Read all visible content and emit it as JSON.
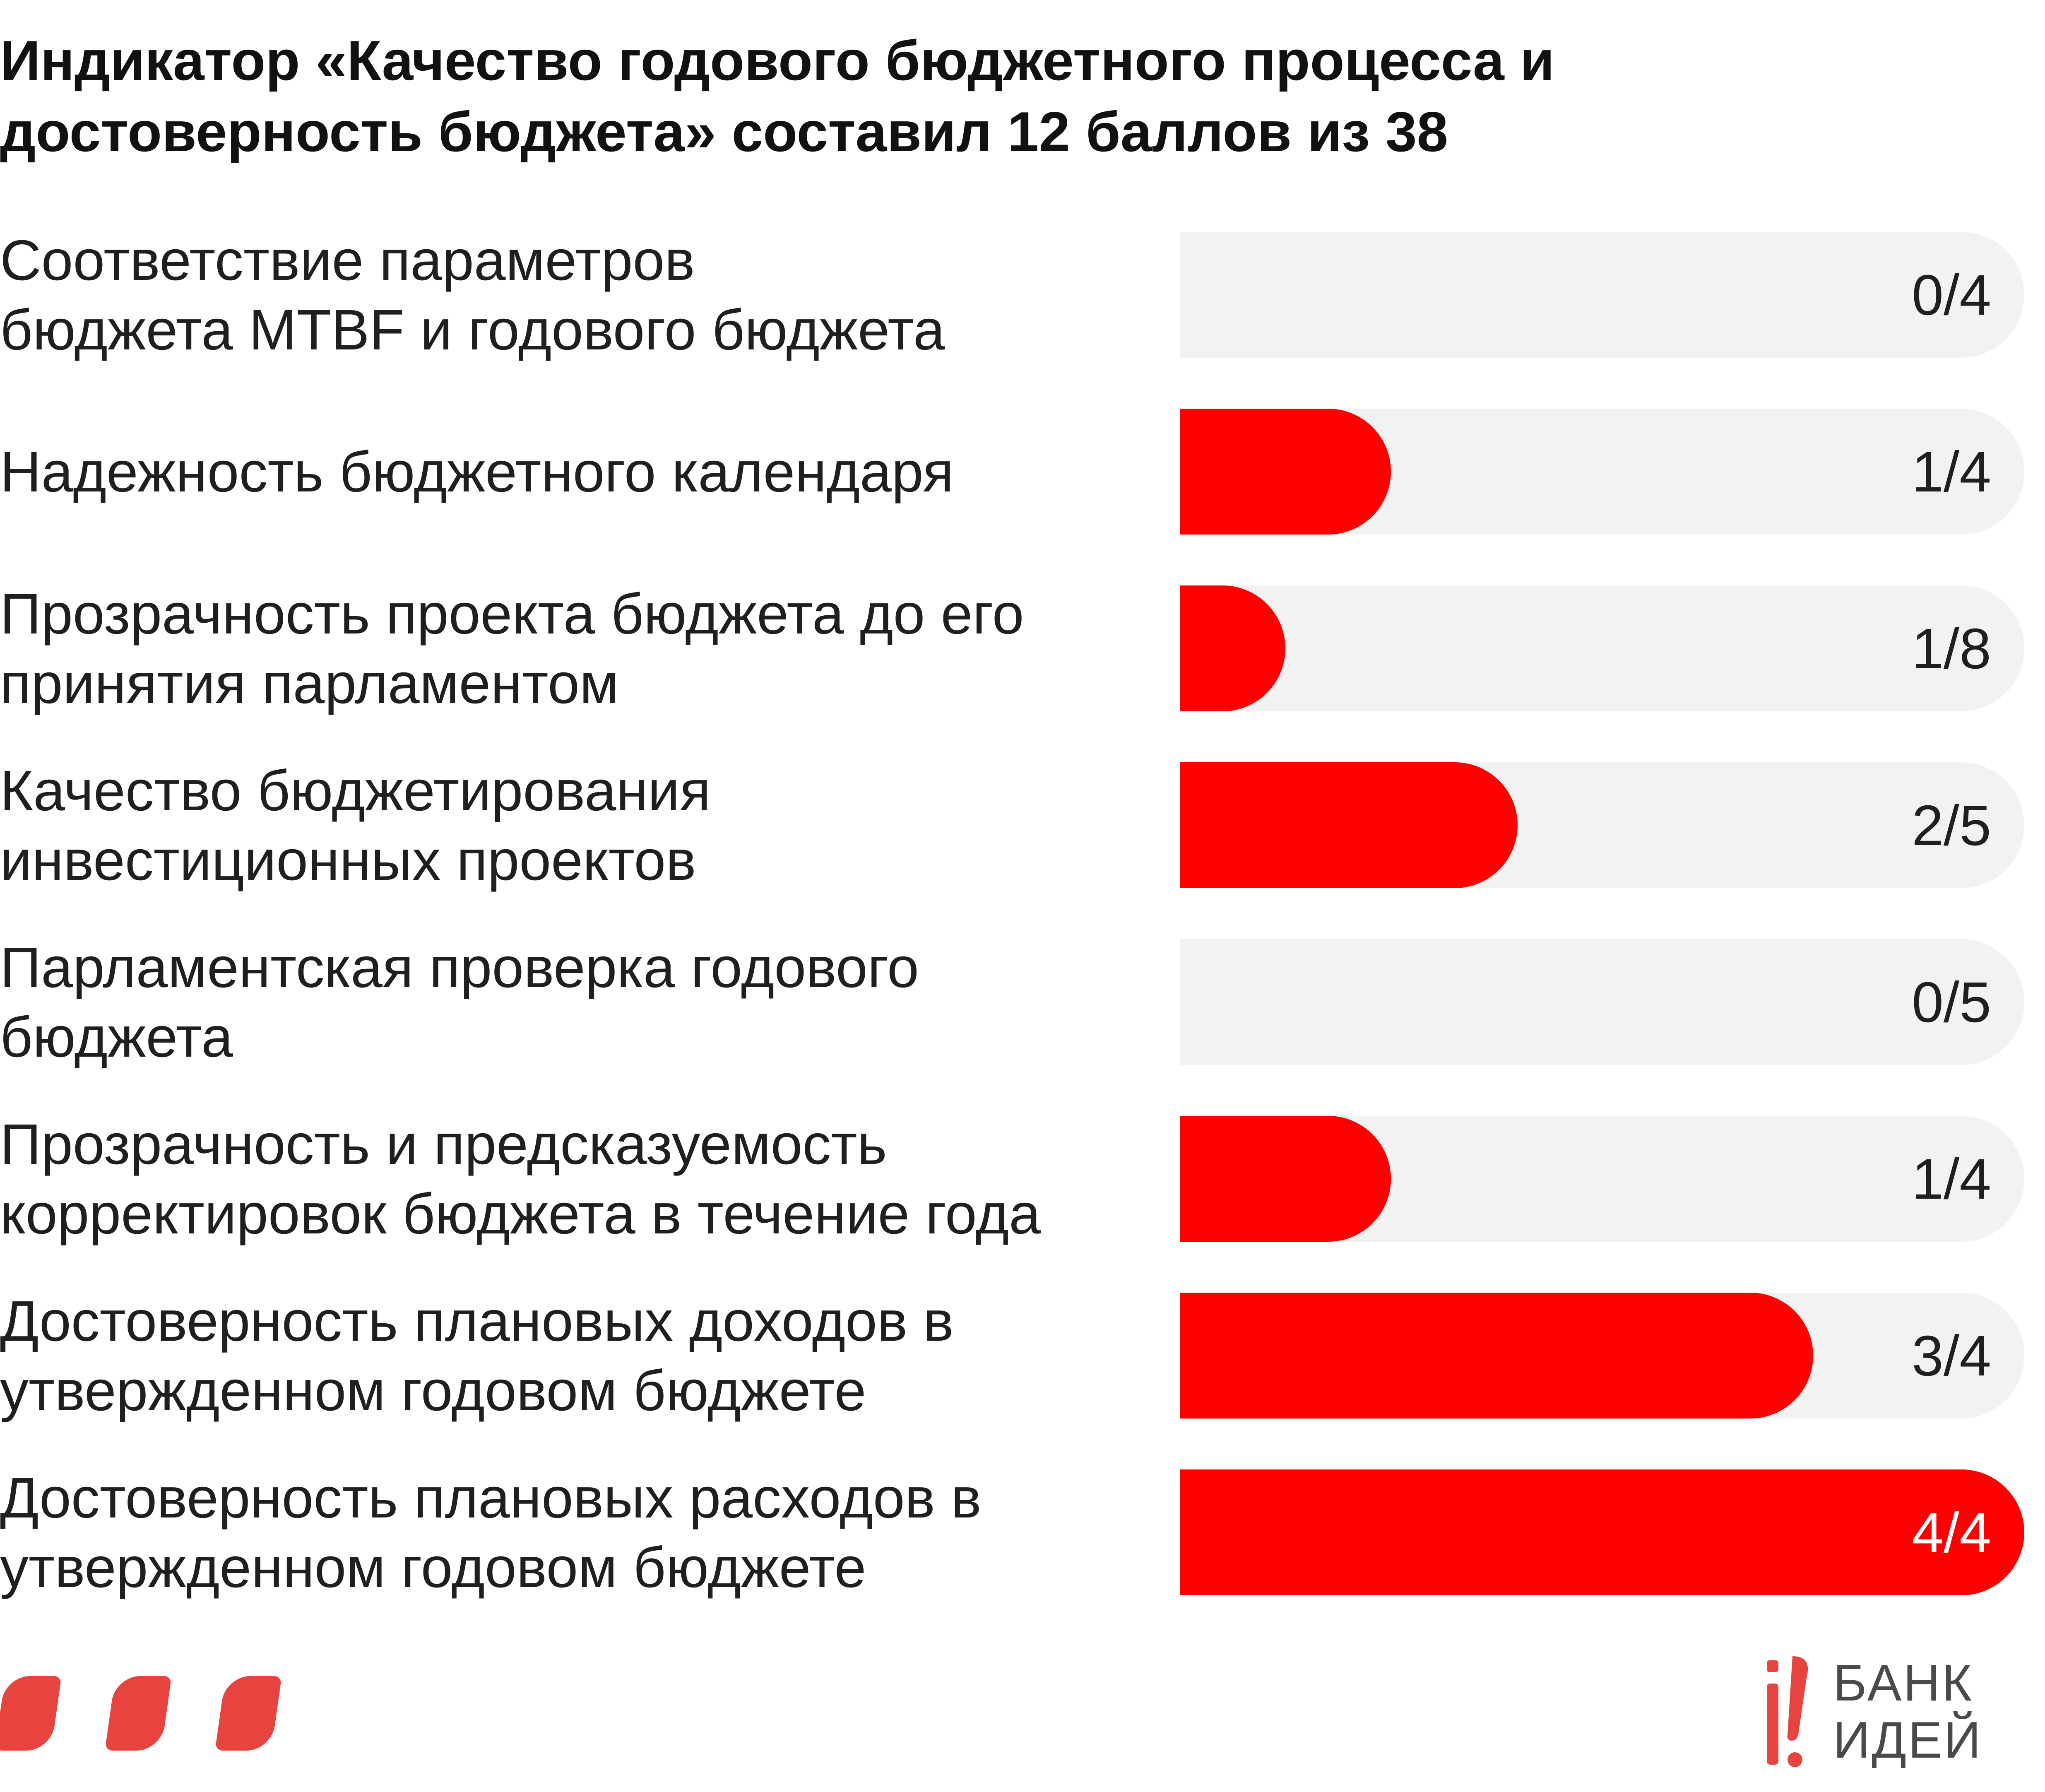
{
  "chart_data": {
    "type": "bar",
    "orientation": "horizontal",
    "title": "Индикатор «Качество годового бюджетного процесса и достоверность бюджета» составил 12 баллов из 38",
    "categories": [
      [
        "Соответствие параметров",
        "бюджета MTBF и годового бюджета"
      ],
      [
        "Надежность бюджетного календаря"
      ],
      [
        "Прозрачность проекта бюджета до его",
        "принятия парламентом"
      ],
      [
        "Качество бюджетирования",
        "инвестиционных проектов"
      ],
      [
        "Парламентская проверка годового",
        "бюджета"
      ],
      [
        "Прозрачность и предсказуемость",
        "корректировок бюджета в течение года"
      ],
      [
        "Достоверность плановых доходов в",
        "утвержденном годовом бюджете"
      ],
      [
        "Достоверность плановых расходов в",
        "утвержденном годовом бюджете"
      ]
    ],
    "values": [
      0,
      1,
      1,
      2,
      0,
      1,
      3,
      4
    ],
    "max_values": [
      4,
      4,
      8,
      5,
      5,
      4,
      4,
      4
    ],
    "value_labels": [
      "0/4",
      "1/4",
      "1/8",
      "2/5",
      "0/5",
      "1/4",
      "3/4",
      "4/4"
    ],
    "colors": {
      "fill": "#ff0000",
      "track": "#f2f2f2",
      "label_text": "#1f1f1f",
      "value_on_fill": "#ffffff"
    },
    "grid": false,
    "legend": "none"
  },
  "decor": {
    "dots_color": "#e8443f",
    "dots_icon": "rounded-petal-icon"
  },
  "logo": {
    "icon": "bank-idei-logo-icon",
    "line1": "БАНК",
    "line2": "ИДЕЙ",
    "color": "#e8443f"
  }
}
